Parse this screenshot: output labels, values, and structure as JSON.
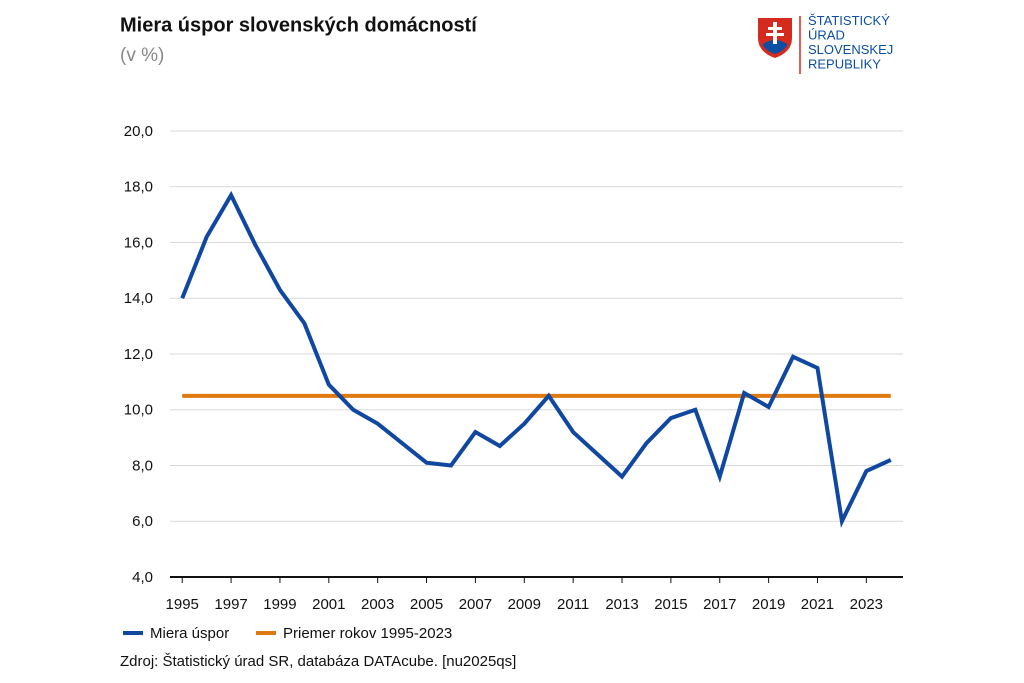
{
  "chart_data": {
    "type": "line",
    "title": "Miera úspor slovenských domácností",
    "subtitle": "(v %)",
    "source": "Zdroj: Štatistický úrad SR, databáza DATAcube. [nu2025qs]",
    "logo_lines": [
      "ŠTATISTICKÝ",
      "ÚRAD",
      "SLOVENSKEJ",
      "REPUBLIKY"
    ],
    "x": [
      1995,
      1996,
      1997,
      1998,
      1999,
      2000,
      2001,
      2002,
      2003,
      2004,
      2005,
      2006,
      2007,
      2008,
      2009,
      2010,
      2011,
      2012,
      2013,
      2014,
      2015,
      2016,
      2017,
      2018,
      2019,
      2020,
      2021,
      2022,
      2023,
      2024
    ],
    "series": [
      {
        "name": "Miera úspor",
        "color": "#0f47a1",
        "values": [
          14.0,
          16.2,
          17.7,
          15.9,
          14.3,
          13.1,
          10.9,
          10.0,
          9.5,
          8.8,
          8.1,
          8.0,
          9.2,
          8.7,
          9.5,
          10.5,
          9.2,
          8.4,
          7.6,
          8.8,
          9.7,
          10.0,
          7.6,
          10.6,
          10.1,
          11.9,
          11.5,
          6.0,
          7.8,
          8.2
        ]
      },
      {
        "name": "Priemer rokov 1995-2023",
        "color": "#e07a10",
        "values": [
          10.5,
          10.5,
          10.5,
          10.5,
          10.5,
          10.5,
          10.5,
          10.5,
          10.5,
          10.5,
          10.5,
          10.5,
          10.5,
          10.5,
          10.5,
          10.5,
          10.5,
          10.5,
          10.5,
          10.5,
          10.5,
          10.5,
          10.5,
          10.5,
          10.5,
          10.5,
          10.5,
          10.5,
          10.5,
          10.5
        ]
      }
    ],
    "xlim": [
      1994.5,
      2024.5
    ],
    "xticks": [
      1995,
      1997,
      1999,
      2001,
      2003,
      2005,
      2007,
      2009,
      2011,
      2013,
      2015,
      2017,
      2019,
      2021,
      2023
    ],
    "ylim": [
      4,
      20
    ],
    "yticks": [
      {
        "value": 4,
        "label": "4,0"
      },
      {
        "value": 6,
        "label": "6,0"
      },
      {
        "value": 8,
        "label": "8,0"
      },
      {
        "value": 10,
        "label": "10,0"
      },
      {
        "value": 12,
        "label": "12,0"
      },
      {
        "value": 14,
        "label": "14,0"
      },
      {
        "value": 16,
        "label": "16,0"
      },
      {
        "value": 18,
        "label": "18,0"
      },
      {
        "value": 20,
        "label": "20,0"
      }
    ],
    "grid": true
  }
}
